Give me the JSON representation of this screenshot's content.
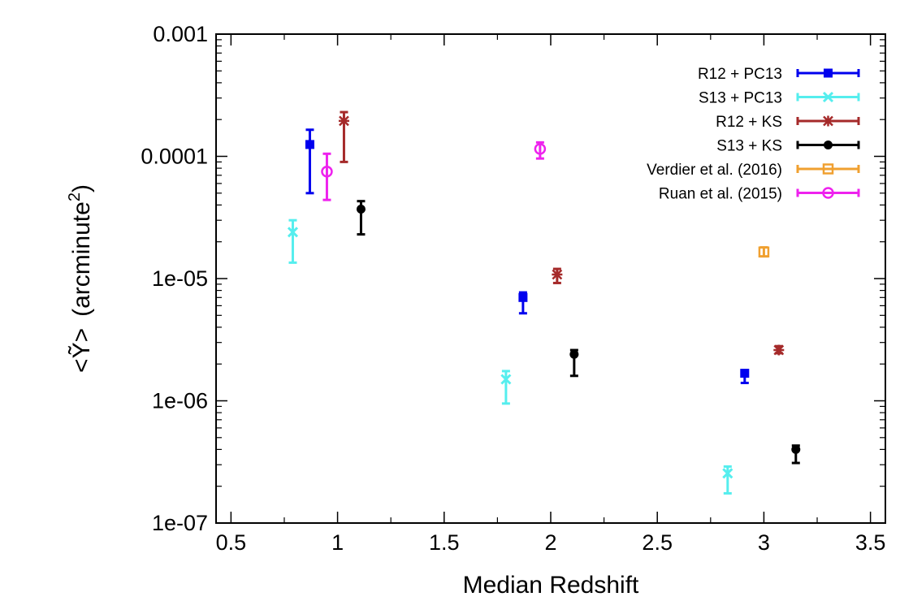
{
  "chart_data": {
    "type": "scatter",
    "title": "",
    "xlabel": "Median Redshift",
    "ylabel_prefix": "<Ỹ>",
    "ylabel_main": "(arcminute",
    "ylabel_sup": "2",
    "ylabel_close": ")",
    "xlim": [
      0.43,
      3.57
    ],
    "ylim": [
      1e-07,
      0.001
    ],
    "yscale": "log",
    "grid": false,
    "legend_position": "top-right",
    "x_ticks": [
      {
        "value": 0.5,
        "label": "0.5"
      },
      {
        "value": 1,
        "label": "1"
      },
      {
        "value": 1.5,
        "label": "1.5"
      },
      {
        "value": 2,
        "label": "2"
      },
      {
        "value": 2.5,
        "label": "2.5"
      },
      {
        "value": 3,
        "label": "3"
      },
      {
        "value": 3.5,
        "label": "3.5"
      }
    ],
    "y_ticks": [
      {
        "value": 1e-07,
        "label": "1e-07"
      },
      {
        "value": 1e-06,
        "label": "1e-06"
      },
      {
        "value": 1e-05,
        "label": "1e-05"
      },
      {
        "value": 0.0001,
        "label": "0.0001"
      },
      {
        "value": 0.001,
        "label": "0.001"
      }
    ],
    "series": [
      {
        "name": "R12 + PC13",
        "color": "#0000ee",
        "marker": "filled-square",
        "points": [
          {
            "x": 0.87,
            "y": 0.000125,
            "ylo": 5e-05,
            "yhi": 0.000165
          },
          {
            "x": 1.87,
            "y": 7e-06,
            "ylo": 5.2e-06,
            "yhi": 7.7e-06
          },
          {
            "x": 2.91,
            "y": 1.68e-06,
            "ylo": 1.4e-06,
            "yhi": 1.75e-06
          }
        ]
      },
      {
        "name": "S13 + PC13",
        "color": "#55eeee",
        "marker": "x",
        "points": [
          {
            "x": 0.79,
            "y": 2.4e-05,
            "ylo": 1.35e-05,
            "yhi": 3e-05
          },
          {
            "x": 1.79,
            "y": 1.5e-06,
            "ylo": 9.5e-07,
            "yhi": 1.75e-06
          },
          {
            "x": 2.83,
            "y": 2.55e-07,
            "ylo": 1.75e-07,
            "yhi": 2.9e-07
          }
        ]
      },
      {
        "name": "R12 + KS",
        "color": "#a52a2a",
        "marker": "star",
        "points": [
          {
            "x": 1.03,
            "y": 0.000195,
            "ylo": 9e-05,
            "yhi": 0.00023
          },
          {
            "x": 2.03,
            "y": 1.08e-05,
            "ylo": 9.2e-06,
            "yhi": 1.2e-05
          },
          {
            "x": 3.07,
            "y": 2.6e-06,
            "ylo": 2.45e-06,
            "yhi": 2.8e-06
          }
        ]
      },
      {
        "name": "S13 + KS",
        "color": "#000000",
        "marker": "filled-circle",
        "points": [
          {
            "x": 1.11,
            "y": 3.7e-05,
            "ylo": 2.3e-05,
            "yhi": 4.3e-05
          },
          {
            "x": 2.11,
            "y": 2.4e-06,
            "ylo": 1.6e-06,
            "yhi": 2.6e-06
          },
          {
            "x": 3.15,
            "y": 4e-07,
            "ylo": 3.1e-07,
            "yhi": 4.3e-07
          }
        ]
      },
      {
        "name": "Verdier et al. (2016)",
        "color": "#f0a030",
        "marker": "open-square",
        "points": [
          {
            "x": 3.0,
            "y": 1.65e-05,
            "ylo": 1.52e-05,
            "yhi": 1.8e-05
          }
        ]
      },
      {
        "name": "Ruan et al. (2015)",
        "color": "#ee22ee",
        "marker": "open-circle",
        "points": [
          {
            "x": 0.95,
            "y": 7.5e-05,
            "ylo": 4.4e-05,
            "yhi": 0.000105
          },
          {
            "x": 1.95,
            "y": 0.000115,
            "ylo": 9.6e-05,
            "yhi": 0.00013
          }
        ]
      }
    ]
  }
}
